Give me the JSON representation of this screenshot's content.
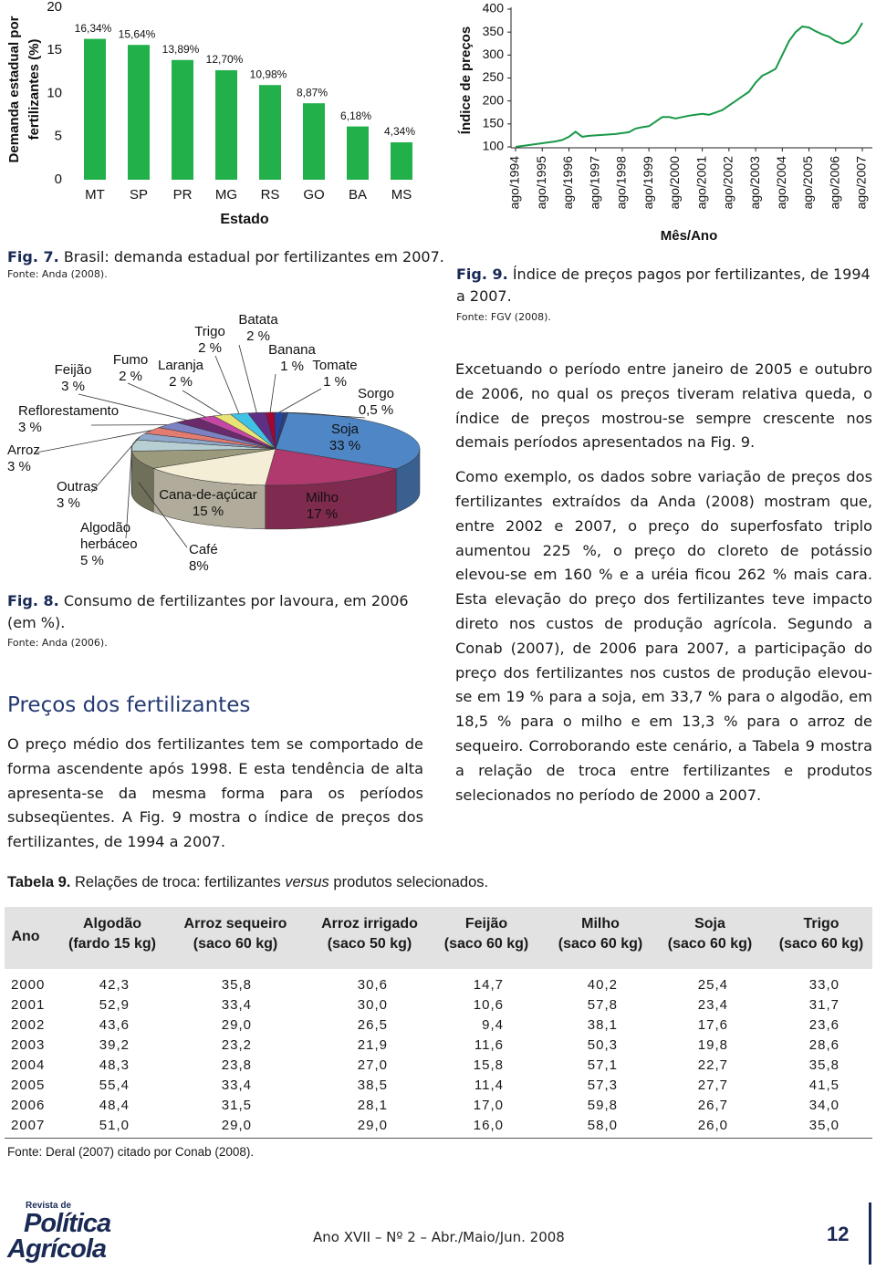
{
  "chart_data": [
    {
      "type": "bar",
      "ylabel": [
        "Demanda estadual por",
        "fertilizantes (%)"
      ],
      "xlabel": "Estado",
      "categories": [
        "MT",
        "SP",
        "PR",
        "MG",
        "RS",
        "GO",
        "BA",
        "MS"
      ],
      "values": [
        16.34,
        15.64,
        13.89,
        12.7,
        10.98,
        8.87,
        6.18,
        4.34
      ],
      "value_labels": [
        "16,34%",
        "15,64%",
        "13,89%",
        "12,70%",
        "10,98%",
        "8,87%",
        "6,18%",
        "4,34%"
      ],
      "color": "#22b04a",
      "ylim": [
        0,
        20
      ],
      "yticks": [
        0,
        5,
        10,
        15,
        20
      ]
    },
    {
      "type": "pie",
      "categories": [
        "Soja",
        "Milho",
        "Cana-de-açúcar",
        "Café",
        "Algodão herbáceo",
        "Outras",
        "Arroz",
        "Reflorestamento",
        "Feijão",
        "Fumo",
        "Laranja",
        "Trigo",
        "Batata",
        "Banana",
        "Tomate",
        "Sorgo"
      ],
      "values": [
        33,
        17,
        15,
        8,
        5,
        3,
        3,
        3,
        3,
        2,
        2,
        2,
        2,
        1,
        1,
        0.5
      ],
      "value_labels": [
        "33 %",
        "17 %",
        "15 %",
        "8%",
        "5 %",
        "3 %",
        "3 %",
        "3 %",
        "3 %",
        "2 %",
        "2 %",
        "2 %",
        "2 %",
        "1 %",
        "1 %",
        "0,5 %"
      ],
      "colors": [
        "#4f86c6",
        "#b03a6e",
        "#f4eed6",
        "#9c9a7c",
        "#b7cfd3",
        "#8fa7c9",
        "#e27c72",
        "#7c82c4",
        "#6a2a6c",
        "#c646a6",
        "#e9e374",
        "#3fc2e4",
        "#5e2f84",
        "#a20634",
        "#24449e",
        "#2e3f7c"
      ]
    },
    {
      "type": "line",
      "ylabel": "Índice de preços",
      "xlabel": "Mês/Ano",
      "categories": [
        "ago/1994",
        null,
        null,
        null,
        "ago/1995",
        null,
        null,
        null,
        "ago/1996",
        null,
        null,
        null,
        "ago/1997",
        null,
        null,
        null,
        "ago/1998",
        null,
        null,
        null,
        "ago/1999",
        null,
        null,
        null,
        "ago/2000",
        null,
        null,
        null,
        "ago/2001",
        null,
        null,
        null,
        "ago/2002",
        null,
        null,
        null,
        "ago/2003",
        null,
        null,
        null,
        "ago/2004",
        null,
        null,
        null,
        "ago/2005",
        null,
        null,
        null,
        "ago/2006",
        null,
        null,
        null,
        "ago/2007"
      ],
      "color": "#1a9848",
      "values": [
        100,
        102,
        104,
        106,
        108,
        110,
        112,
        115,
        122,
        133,
        122,
        124,
        125,
        126,
        127,
        128,
        130,
        132,
        140,
        143,
        145,
        155,
        165,
        165,
        162,
        165,
        168,
        170,
        172,
        170,
        175,
        180,
        190,
        200,
        210,
        220,
        240,
        255,
        262,
        270,
        300,
        330,
        350,
        362,
        360,
        352,
        345,
        340,
        330,
        325,
        330,
        345,
        370
      ],
      "ylim": [
        100,
        400
      ],
      "yticks": [
        100,
        150,
        200,
        250,
        300,
        350,
        400
      ]
    }
  ],
  "captions": [
    {
      "label": "Fig. 7.",
      "text": "Brasil: demanda estadual por fertilizantes em 2007.",
      "source": "Fonte: Anda (2008)."
    },
    {
      "label": "Fig. 8.",
      "text": "Consumo de fertilizantes por lavoura, em 2006 (em %).",
      "source": "Fonte: Anda (2006)."
    },
    {
      "label": "Fig. 9.",
      "text": "Índice de preços pagos por fertilizantes, de 1994 a 2007.",
      "source": "Fonte: FGV (2008)."
    }
  ],
  "section": {
    "heading": "Preços dos fertilizantes",
    "paragraphs": [
      "O preço médio dos fertilizantes tem se comportado de forma ascendente após 1998. E esta tendência de alta apresenta-se da mesma forma para os períodos subseqüentes. A Fig. 9 mostra o índice de preços dos fertilizantes, de 1994 a 2007."
    ]
  },
  "right_text": {
    "paragraphs": [
      "Excetuando o período entre janeiro de 2005 e outubro de 2006, no qual os preços tiveram relativa queda, o índice de preços mostrou-se sempre crescente nos demais períodos apresentados na Fig. 9.",
      "Como exemplo, os dados sobre variação de preços dos fertilizantes extraídos da Anda (2008) mostram que, entre 2002 e 2007, o preço do superfosfato triplo aumentou 225 %, o preço do cloreto de potássio elevou-se em 160 % e a uréia ficou 262 % mais cara. Esta elevação do preço dos fertilizantes teve impacto direto nos custos de produção agrícola. Segundo a Conab (2007), de 2006 para 2007, a participação do preço dos fertilizantes nos custos de produção elevou-se em 19 % para a soja, em 33,7 % para o algodão, em 18,5 % para o milho e em 13,3 % para o arroz de sequeiro. Corroborando este cenário, a Tabela 9 mostra a relação de troca entre fertilizantes e produtos selecionados no período de 2000 a 2007."
    ]
  },
  "table": {
    "title_label": "Tabela 9.",
    "title_parts": [
      "Relações de troca: fertilizantes ",
      "versus",
      " produtos selecionados."
    ],
    "columns": [
      {
        "name": "Ano"
      },
      {
        "name": "Algodão",
        "unit": "(fardo 15 kg)"
      },
      {
        "name": "Arroz sequeiro",
        "unit": "(saco 60 kg)"
      },
      {
        "name": "Arroz irrigado",
        "unit": "(saco 50 kg)"
      },
      {
        "name": "Feijão",
        "unit": "(saco 60 kg)"
      },
      {
        "name": "Milho",
        "unit": "(saco 60 kg)"
      },
      {
        "name": "Soja",
        "unit": "(saco 60 kg)"
      },
      {
        "name": "Trigo",
        "unit": "(saco 60 kg)"
      }
    ],
    "rows": [
      [
        "2000",
        "42,3",
        "35,8",
        "30,6",
        "14,7",
        "40,2",
        "25,4",
        "33,0"
      ],
      [
        "2001",
        "52,9",
        "33,4",
        "30,0",
        "10,6",
        "57,8",
        "23,4",
        "31,7"
      ],
      [
        "2002",
        "43,6",
        "29,0",
        "26,5",
        "9,4",
        "38,1",
        "17,6",
        "23,6"
      ],
      [
        "2003",
        "39,2",
        "23,2",
        "21,9",
        "11,6",
        "50,3",
        "19,8",
        "28,6"
      ],
      [
        "2004",
        "48,3",
        "23,8",
        "27,0",
        "15,8",
        "57,1",
        "22,7",
        "35,8"
      ],
      [
        "2005",
        "55,4",
        "33,4",
        "38,5",
        "11,4",
        "57,3",
        "27,7",
        "41,5"
      ],
      [
        "2006",
        "48,4",
        "31,5",
        "28,1",
        "17,0",
        "59,8",
        "26,7",
        "34,0"
      ],
      [
        "2007",
        "51,0",
        "29,0",
        "29,0",
        "16,0",
        "58,0",
        "26,0",
        "35,0"
      ]
    ],
    "source": "Fonte: Deral (2007) citado por Conab (2008)."
  },
  "footer": {
    "logo": [
      "Revista de",
      "Política",
      "Agrícola"
    ],
    "issue": "Ano XVII – Nº 2 – Abr./Maio/Jun. 2008",
    "page": "12"
  }
}
